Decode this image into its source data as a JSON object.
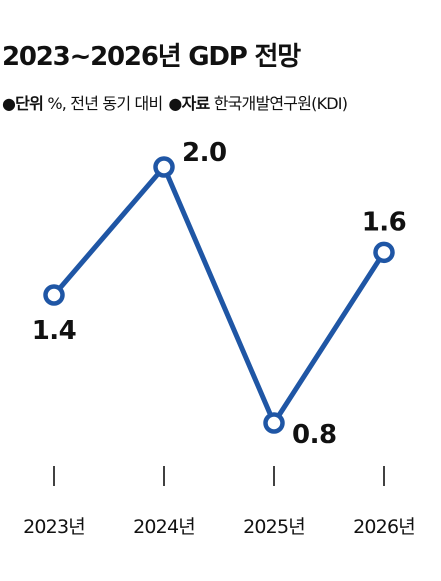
{
  "header": {
    "title": "2023~2026년 GDP 전망",
    "bullet": "●",
    "unit_label": "단위",
    "unit_value": "%, 전년 동기 대비",
    "source_label": "자료",
    "source_value": "한국개발연구원(KDI)"
  },
  "colors": {
    "line": "#1f56a5",
    "marker_fill": "#ffffff",
    "text": "#111111",
    "tick": "#111111"
  },
  "chart_data": {
    "type": "line",
    "categories": [
      "2023년",
      "2024년",
      "2025년",
      "2026년"
    ],
    "series": [
      {
        "values": [
          1.4,
          2.0,
          0.8,
          1.6
        ]
      }
    ],
    "data_labels": [
      "1.4",
      "2.0",
      "0.8",
      "1.6"
    ],
    "ylim": [
      0.8,
      2.0
    ],
    "grid": false,
    "legend": "none"
  }
}
